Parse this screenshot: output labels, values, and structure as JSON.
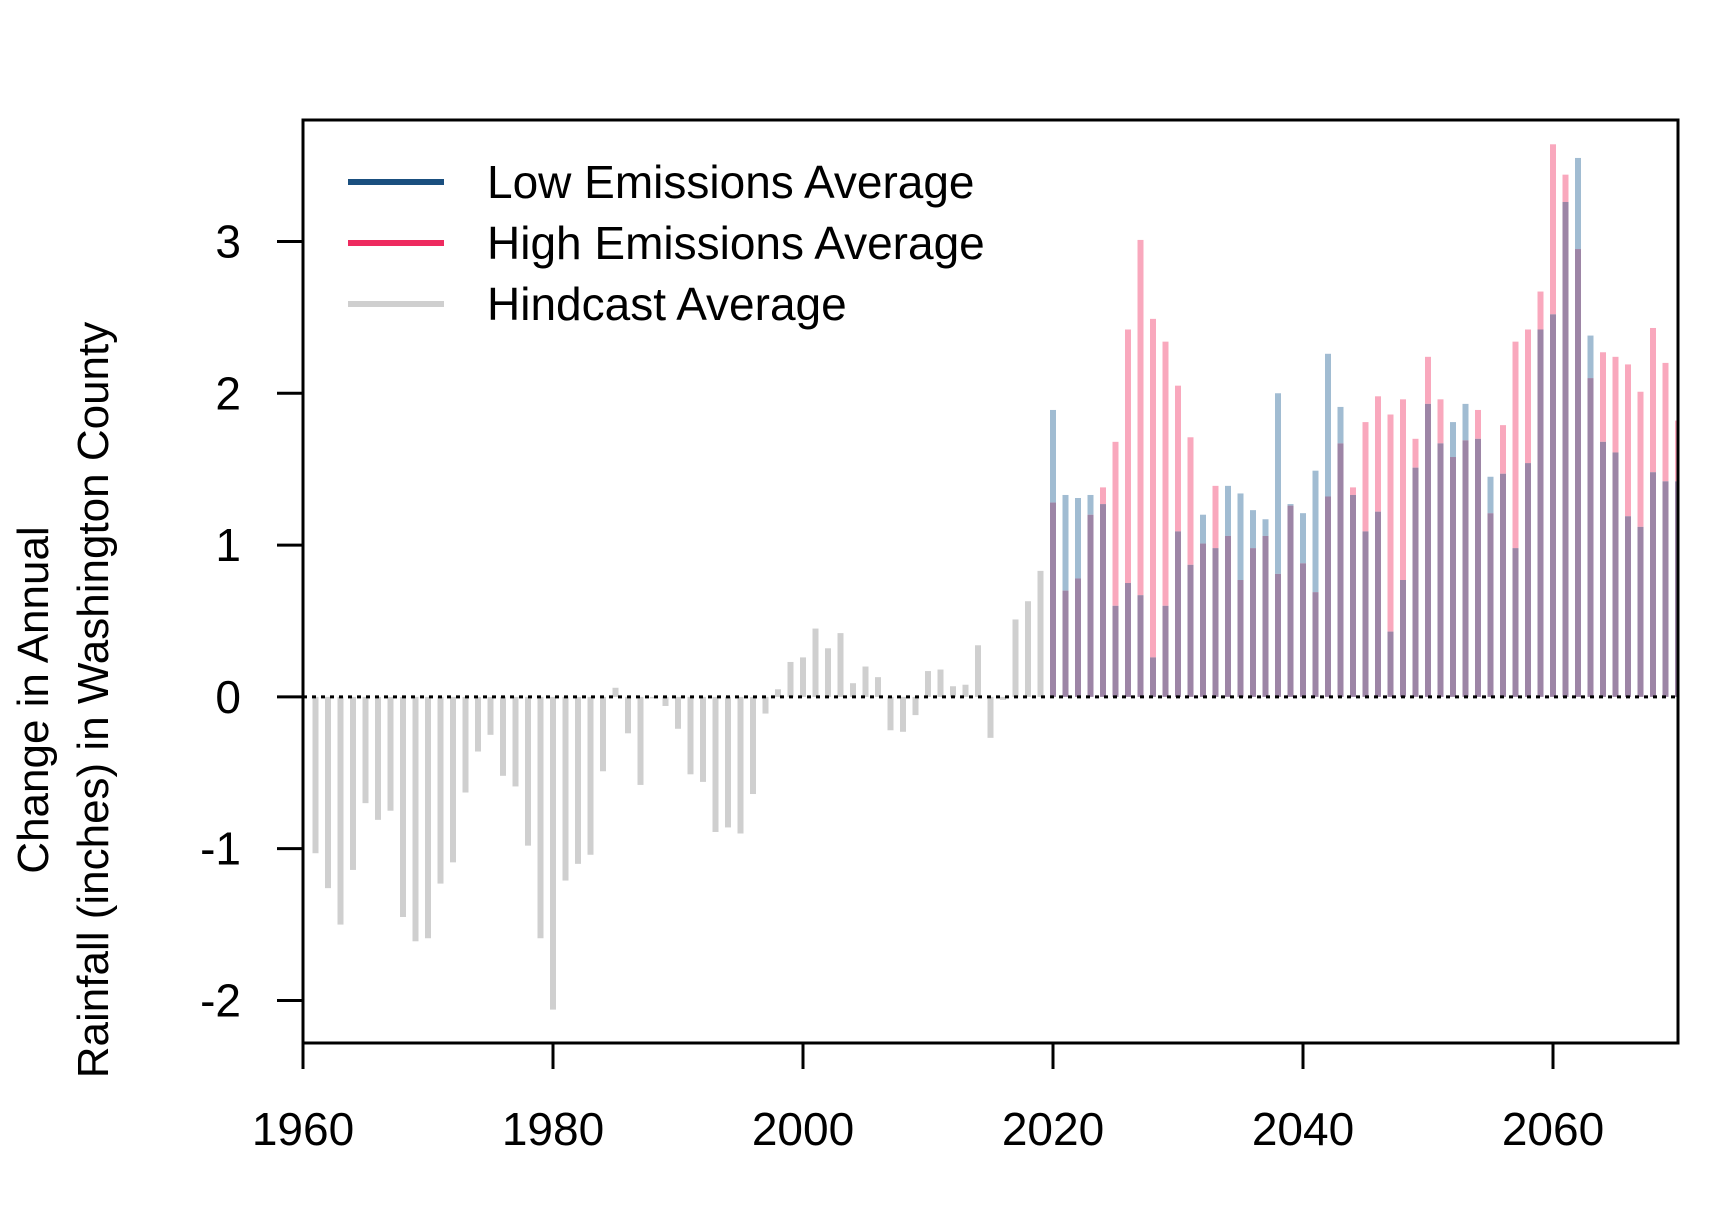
{
  "chart_data": {
    "type": "bar",
    "title": "",
    "xlabel": "",
    "ylabel_lines": [
      "Change in Annual",
      "Rainfall (inches) in Washington County"
    ],
    "xlim": [
      1960,
      2070
    ],
    "ylim": [
      -2.28,
      3.8
    ],
    "x_ticks": [
      "1960",
      "1980",
      "2000",
      "2020",
      "2040",
      "2060"
    ],
    "y_ticks": [
      "3",
      "2",
      "1",
      "0",
      "-1",
      "-2"
    ],
    "reference_line": 0,
    "legend": {
      "placement": "top-left",
      "items": [
        {
          "label": "Low Emissions Average",
          "color": "#1a4f7f"
        },
        {
          "label": "High Emissions Average",
          "color": "#ee2a5f"
        },
        {
          "label": "Hindcast Average",
          "color": "#cfcfcf"
        }
      ]
    },
    "colors": {
      "hindcast": "#cfcfcf",
      "low_bar": "#a1bcd2",
      "high_bar": "#f9a8bd",
      "overlap": "#9d85a6"
    },
    "series": [
      {
        "name": "Hindcast Average",
        "x": [
          1961,
          1962,
          1963,
          1964,
          1965,
          1966,
          1967,
          1968,
          1969,
          1970,
          1971,
          1972,
          1973,
          1974,
          1975,
          1976,
          1977,
          1978,
          1979,
          1980,
          1981,
          1982,
          1983,
          1984,
          1985,
          1986,
          1987,
          1988,
          1989,
          1990,
          1991,
          1992,
          1993,
          1994,
          1995,
          1996,
          1997,
          1998,
          1999,
          2000,
          2001,
          2002,
          2003,
          2004,
          2005,
          2006,
          2007,
          2008,
          2009,
          2010,
          2011,
          2012,
          2013,
          2014,
          2015,
          2016,
          2017,
          2018,
          2019
        ],
        "values": [
          -1.03,
          -1.26,
          -1.5,
          -1.14,
          -0.7,
          -0.81,
          -0.75,
          -1.45,
          -1.61,
          -1.59,
          -1.23,
          -1.09,
          -0.63,
          -0.36,
          -0.25,
          -0.52,
          -0.59,
          -0.98,
          -1.59,
          -2.06,
          -1.21,
          -1.1,
          -1.04,
          -0.49,
          0.06,
          -0.24,
          -0.58,
          -0.01,
          -0.06,
          -0.21,
          -0.51,
          -0.56,
          -0.89,
          -0.86,
          -0.9,
          -0.64,
          -0.11,
          0.05,
          0.23,
          0.26,
          0.45,
          0.32,
          0.42,
          0.09,
          0.2,
          0.13,
          -0.22,
          -0.23,
          -0.12,
          0.17,
          0.18,
          0.07,
          0.08,
          0.34,
          -0.27,
          -0.02,
          0.51,
          0.63,
          0.83
        ]
      },
      {
        "name": "Low Emissions Average",
        "x": [
          2020,
          2021,
          2022,
          2023,
          2024,
          2025,
          2026,
          2027,
          2028,
          2029,
          2030,
          2031,
          2032,
          2033,
          2034,
          2035,
          2036,
          2037,
          2038,
          2039,
          2040,
          2041,
          2042,
          2043,
          2044,
          2045,
          2046,
          2047,
          2048,
          2049,
          2050,
          2051,
          2052,
          2053,
          2054,
          2055,
          2056,
          2057,
          2058,
          2059,
          2060,
          2061,
          2062,
          2063,
          2064,
          2065,
          2066,
          2067,
          2068,
          2069,
          2070
        ],
        "values": [
          1.89,
          1.33,
          1.31,
          1.33,
          1.27,
          0.6,
          0.75,
          0.67,
          0.26,
          0.6,
          1.09,
          0.87,
          1.2,
          0.98,
          1.39,
          1.34,
          1.23,
          1.17,
          2.0,
          1.27,
          1.21,
          1.49,
          2.26,
          1.91,
          1.33,
          1.09,
          1.22,
          0.43,
          0.77,
          1.51,
          1.93,
          1.67,
          1.81,
          1.93,
          1.7,
          1.45,
          1.47,
          0.98,
          1.54,
          2.42,
          2.52,
          3.26,
          3.55,
          2.38,
          1.68,
          1.61,
          1.19,
          1.12,
          1.48,
          1.42,
          1.42
        ]
      },
      {
        "name": "High Emissions Average",
        "x": [
          2020,
          2021,
          2022,
          2023,
          2024,
          2025,
          2026,
          2027,
          2028,
          2029,
          2030,
          2031,
          2032,
          2033,
          2034,
          2035,
          2036,
          2037,
          2038,
          2039,
          2040,
          2041,
          2042,
          2043,
          2044,
          2045,
          2046,
          2047,
          2048,
          2049,
          2050,
          2051,
          2052,
          2053,
          2054,
          2055,
          2056,
          2057,
          2058,
          2059,
          2060,
          2061,
          2062,
          2063,
          2064,
          2065,
          2066,
          2067,
          2068,
          2069,
          2070
        ],
        "values": [
          1.28,
          0.7,
          0.78,
          1.2,
          1.38,
          1.68,
          2.42,
          3.01,
          2.49,
          2.34,
          2.05,
          1.71,
          1.01,
          1.39,
          1.06,
          0.77,
          0.98,
          1.06,
          0.81,
          1.26,
          0.88,
          0.69,
          1.32,
          1.67,
          1.38,
          1.81,
          1.98,
          1.86,
          1.96,
          1.7,
          2.24,
          1.96,
          1.58,
          1.69,
          1.89,
          1.21,
          1.79,
          2.34,
          2.42,
          2.67,
          3.64,
          3.44,
          2.95,
          2.1,
          2.27,
          2.24,
          2.19,
          2.01,
          2.43,
          2.2,
          1.82
        ]
      }
    ]
  }
}
